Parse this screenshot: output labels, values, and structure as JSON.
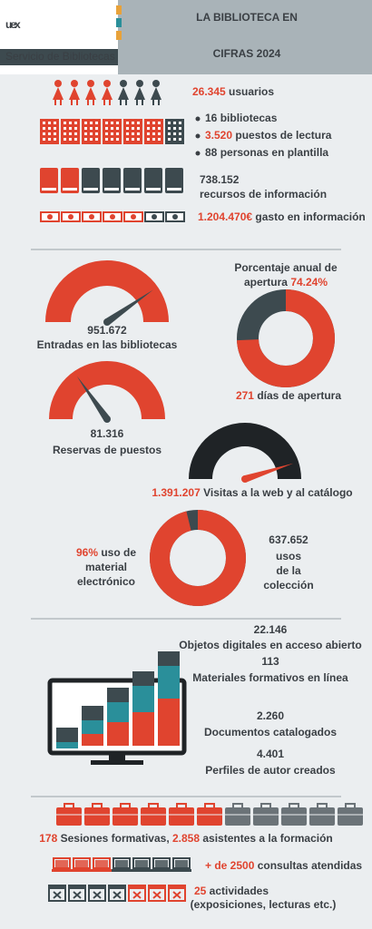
{
  "header": {
    "logo": "uex",
    "service": "Servicio de Bibliotecas",
    "title_lines": [
      "LA BIBLIOTECA EN",
      "CIFRAS 2024"
    ]
  },
  "users": {
    "value": "26.345",
    "label": "usuarios"
  },
  "facilities": [
    {
      "value": "16",
      "label": "bibliotecas"
    },
    {
      "value": "3.520",
      "label": "puestos de lectura"
    },
    {
      "value": "88",
      "label": "personas en plantilla"
    }
  ],
  "resources": {
    "value": "738.152",
    "label": "recursos de información"
  },
  "spending": {
    "value": "1.204.470€",
    "label": "gasto en información"
  },
  "entries": {
    "value": "951.672",
    "label": "Entradas en las bibliotecas"
  },
  "opening": {
    "label_lines": [
      "Porcentaje anual de",
      "apertura"
    ],
    "value": 74.24,
    "value_label": "74.24%",
    "days": "271",
    "days_label": "días de apertura"
  },
  "reservations": {
    "value": "81.316",
    "label": "Reservas de puestos"
  },
  "visits": {
    "value": "1.391.207",
    "label": "Visitas a la web y al catálogo"
  },
  "electronic": {
    "value": 96,
    "value_label": "96%",
    "label_lines": [
      "uso de",
      "material",
      "electrónico"
    ]
  },
  "collection": {
    "value": "637.652",
    "label_lines": [
      "usos",
      "de la",
      "colección"
    ]
  },
  "digital": [
    {
      "value": "22.146",
      "label": "Objetos digitales en acceso abierto"
    },
    {
      "value": "113",
      "label": "Materiales formativos en línea"
    },
    {
      "value": "2.260",
      "label": "Documentos catalogados"
    },
    {
      "value": "4.401",
      "label": "Perfiles de autor creados"
    }
  ],
  "training": {
    "sessions": "178",
    "sessions_label": "Sesiones formativas,",
    "attendees": "2.858",
    "attendees_label": "asistentes a la formación"
  },
  "queries": {
    "value": "+ de 2500",
    "label": "consultas atendidas"
  },
  "activities": {
    "value": "25",
    "label": "actividades",
    "note": "(exposiciones, lecturas etc.)"
  }
}
